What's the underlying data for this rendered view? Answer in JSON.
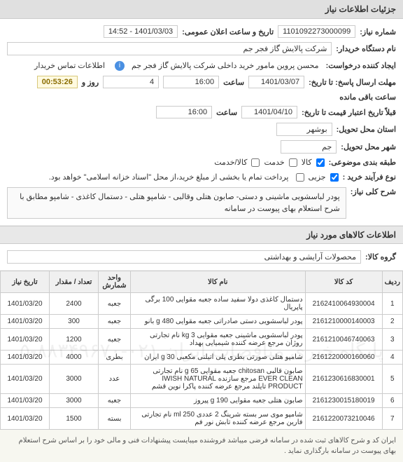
{
  "header": {
    "title": "جزئیات اطلاعات نیاز"
  },
  "fields": {
    "need_number_label": "شماره نیاز:",
    "need_number": "1101092273000099",
    "public_datetime_label": "تاریخ و ساعت اعلان عمومی:",
    "public_datetime": "1401/03/03 - 14:52",
    "buyer_org_label": "نام دستگاه خریدار:",
    "buyer_org": "شرکت پالایش گاز فجر جم",
    "requester_label": "ایجاد کننده درخواست:",
    "requester": "محسن پروین مامور خرید داخلی شرکت پالایش گاز فجر جم",
    "buyer_info_label": "اطلاعات تماس خریدار",
    "reply_deadline_label": "مهلت ارسال پاسخ: تا تاریخ:",
    "reply_deadline_date": "1401/03/07",
    "reply_deadline_time_label": "ساعت",
    "reply_deadline_time": "16:00",
    "days_label": "روز و",
    "days_value": "4",
    "remaining_label": "ساعت باقی مانده",
    "remaining_timer": "00:53:26",
    "validity_label": "قبلاً تاریخ اعتبار قیمت تا تاریخ:",
    "validity_date": "1401/04/10",
    "validity_time_label": "ساعت",
    "validity_time": "16:00",
    "delivery_province_label": "استان محل تحویل:",
    "delivery_province": "بوشهر",
    "delivery_city_label": "شهر محل تحویل:",
    "delivery_city": "جم",
    "category_label": "طبقه بندی موضوعی:",
    "cat_goods_label": "کالا",
    "cat_service_label": "خدمت",
    "cat_goods_service_label": "کالا/خدمت",
    "purchase_type_label": "نوع فرآیند خرید :",
    "purchase_jozii_label": "جزیی",
    "purchase_note": "پرداخت تمام یا بخشی از مبلغ خرید،از محل \"اسناد خزانه اسلامی\" خواهد بود.",
    "general_desc_label": "شرح کلی نیاز:",
    "general_desc": "پودر لباسشویی ماشینی و دستی- صابون هتلی وقالبی - شامپو هتلی - دستمال کاغذی - شامپو  مطابق با شرح استعلام بهای پیوست در سامانه",
    "goods_section_title": "اطلاعات کالاهای مورد نیاز",
    "goods_group_label": "گروه کالا:",
    "goods_group": "محصولات آرایشی و بهداشتی"
  },
  "table": {
    "headers": {
      "idx": "ردیف",
      "code": "کد کالا",
      "name": "نام کالا",
      "unit": "واحد شمارش",
      "qty": "تعداد / مقدار",
      "date": "تاریخ نیاز"
    },
    "rows": [
      {
        "idx": "1",
        "code": "2162410064930004",
        "name": "دستمال کاغذی دولا سفید ساده جعبه مقوایی 100 برگی پاپریال",
        "unit": "جعبه",
        "qty": "2400",
        "date": "1401/03/20"
      },
      {
        "idx": "2",
        "code": "2161210000140003",
        "name": "پودر لباسشویی دستی صادراتی جعبه مقوایی g 480 بانو",
        "unit": "جعبه",
        "qty": "300",
        "date": "1401/03/20"
      },
      {
        "idx": "3",
        "code": "2161210046740063",
        "name": "پودر لباسشویی ماشینی جعبه مقوایی kg 3 نام تجارتی روژان مرجع عرضه کننده شیمیایی بهداد",
        "unit": "جعبه",
        "qty": "1200",
        "date": "1401/03/20"
      },
      {
        "idx": "4",
        "code": "2161220000160060",
        "name": "شامپو هتلی صورتی بطری پلی اتیلنی مکعبی g 30 ایران",
        "unit": "بطری",
        "qty": "4000",
        "date": "1401/03/20"
      },
      {
        "idx": "5",
        "code": "2161230616830001",
        "name": "صابون قالبی chitosan جعبه مقوایی g 65 نام تجارتی EVER CLEAN مرجع سازنده IWISH NATURAL PRODUCT تایلند مرجع عرضه کننده پاکرا نوین قشم",
        "unit": "عدد",
        "qty": "3000",
        "date": "1401/03/20"
      },
      {
        "idx": "6",
        "code": "2161230015180019",
        "name": "صابون هتلی جعبه مقوایی g 190 پیروز",
        "unit": "جعبه",
        "qty": "3000",
        "date": "1401/03/20"
      },
      {
        "idx": "7",
        "code": "2161220073210046",
        "name": "شامپو موی سر بسته شرینگ 2 عددی ml 250 نام تجارتی فارین مرجع عرضه کننده تابش نور فم",
        "unit": "بسته",
        "qty": "1500",
        "date": "1401/03/20"
      }
    ]
  },
  "footer": {
    "note": "ایران کد و شرح کالاهای ثبت شده در سامانه فرضی میباشد فروشنده میبایست پیشنهادات فنی و مالی خود را بر اساس شرح استعلام بهای پیوست در سامانه بارگذاری نماید ."
  },
  "watermark": "پایگاه خبری مناقصات ایران ۰۲۱-۸۸۳۴۹۶۷۰-۵"
}
